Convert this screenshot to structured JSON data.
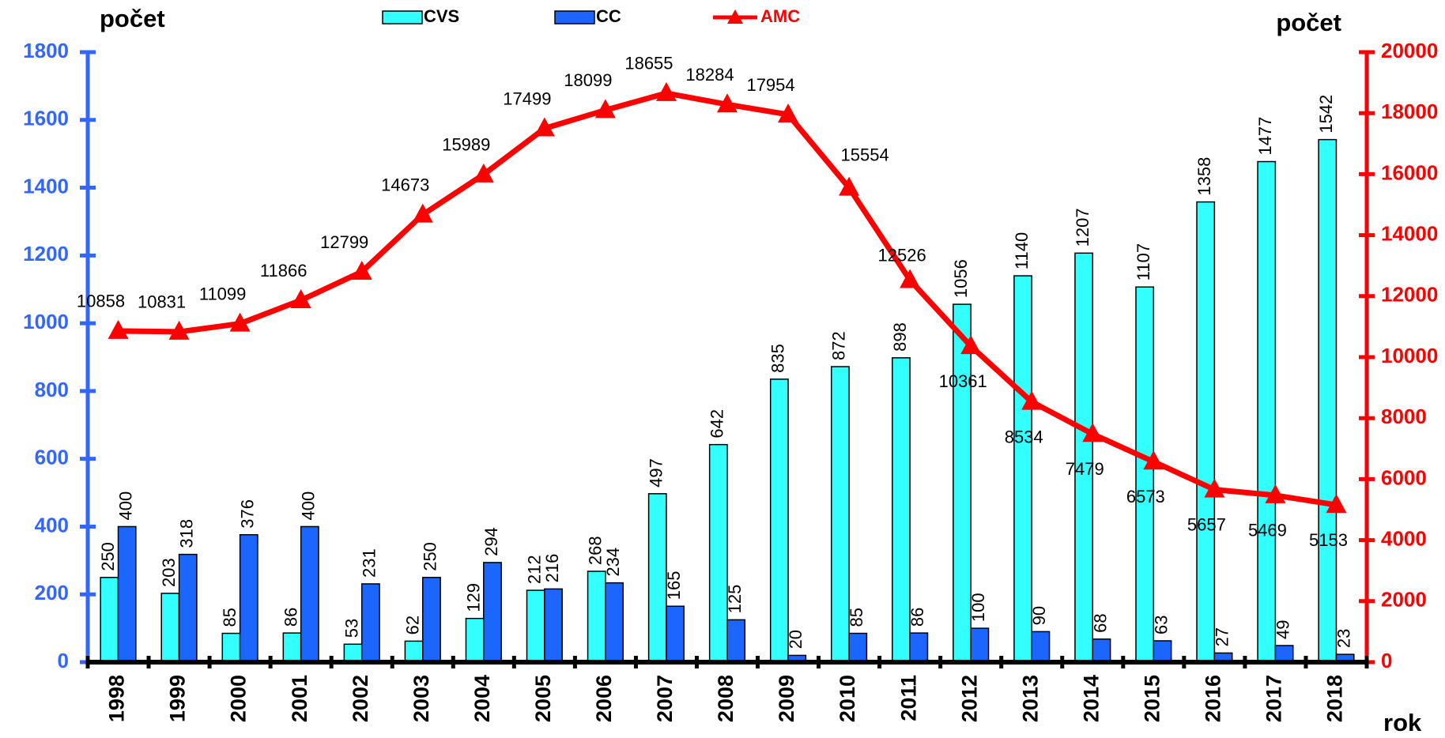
{
  "chart_data": {
    "type": "bar_line",
    "y_label": "počet",
    "y2_label": "počet",
    "x_label": "rok",
    "categories": [
      "1998",
      "1999",
      "2000",
      "2001",
      "2002",
      "2003",
      "2004",
      "2005",
      "2006",
      "2007",
      "2008",
      "2009",
      "2010",
      "2011",
      "2012",
      "2013",
      "2014",
      "2015",
      "2016",
      "2017",
      "2018"
    ],
    "series": [
      {
        "name": "CVS",
        "color": "#33ffff",
        "kind": "bar",
        "values": [
          250,
          203,
          85,
          86,
          53,
          62,
          129,
          212,
          268,
          497,
          642,
          835,
          872,
          898,
          1056,
          1140,
          1207,
          1107,
          1358,
          1477,
          1542
        ]
      },
      {
        "name": "CC",
        "color": "#1a66ff",
        "kind": "bar",
        "values": [
          400,
          318,
          376,
          400,
          231,
          250,
          294,
          216,
          234,
          165,
          125,
          20,
          85,
          86,
          100,
          90,
          68,
          63,
          27,
          49,
          23
        ]
      },
      {
        "name": "AMC",
        "color": "#ff0000",
        "kind": "line",
        "axis": "y2",
        "values": [
          10858,
          10831,
          11099,
          11866,
          12799,
          14673,
          15989,
          17499,
          18099,
          18655,
          18284,
          17954,
          15554,
          12526,
          10361,
          8534,
          7479,
          6573,
          5657,
          5469,
          5153
        ]
      }
    ],
    "ylim": [
      0,
      1800
    ],
    "yticks": [
      0,
      200,
      400,
      600,
      800,
      1000,
      1200,
      1400,
      1600,
      1800
    ],
    "y_color": "#3366ff",
    "y2lim": [
      0,
      20000
    ],
    "y2ticks": [
      0,
      2000,
      4000,
      6000,
      8000,
      10000,
      12000,
      14000,
      16000,
      18000,
      20000
    ],
    "y2_color": "#ff0000"
  }
}
